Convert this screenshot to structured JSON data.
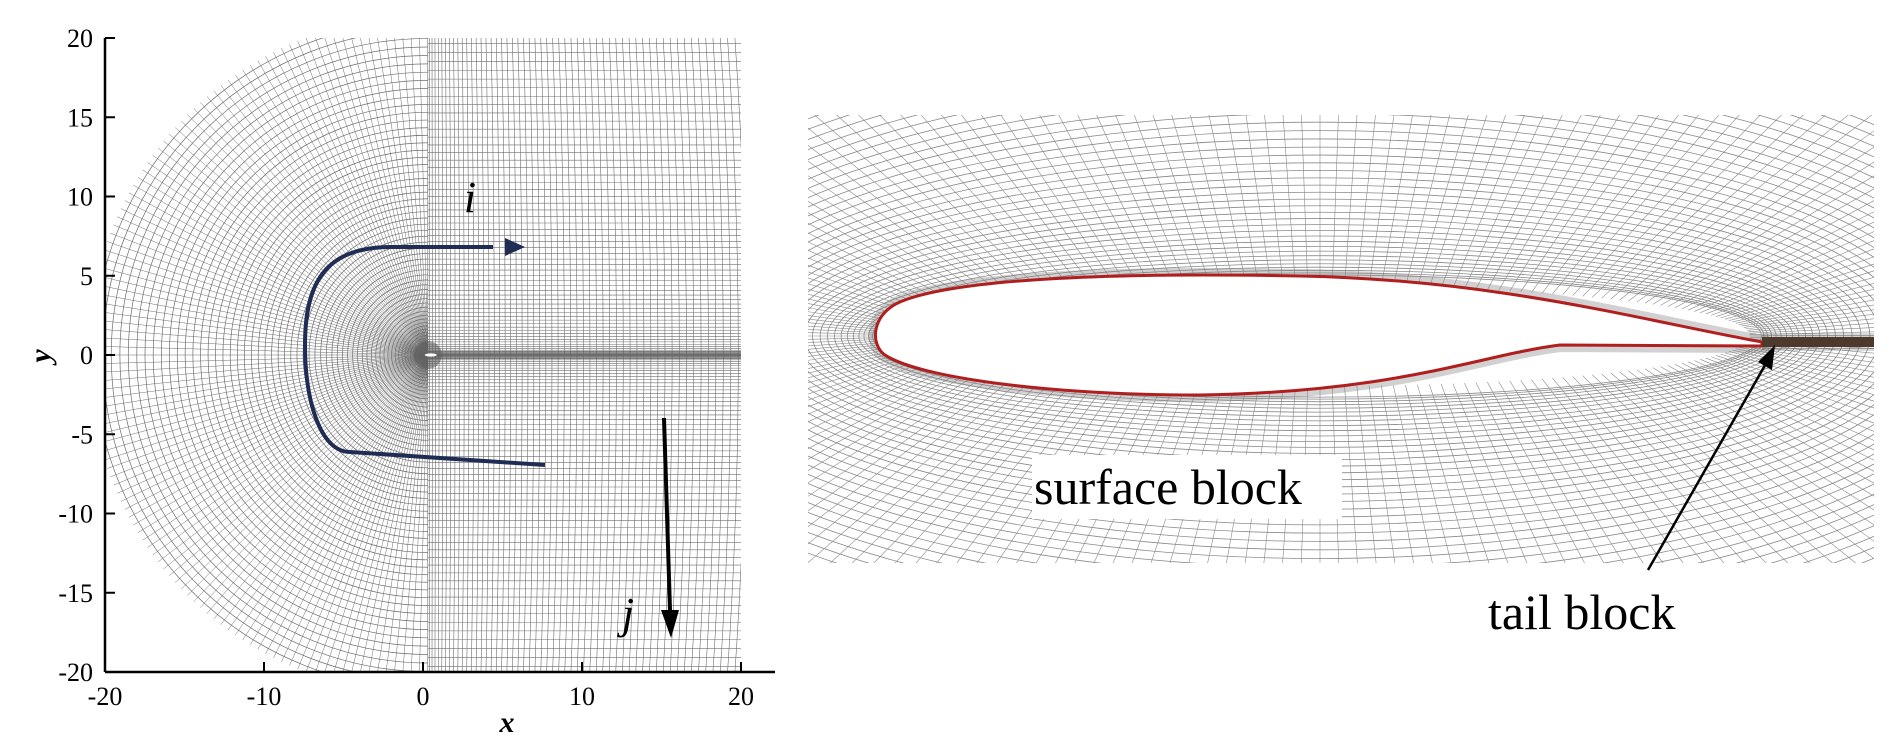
{
  "left_panel": {
    "x_axis_label": "x",
    "y_axis_label": "y",
    "x_ticks": [
      "-20",
      "-10",
      "0",
      "10",
      "20"
    ],
    "y_ticks": [
      "20",
      "15",
      "10",
      "5",
      "0",
      "-5",
      "-10",
      "-15",
      "-20"
    ],
    "i_label": "i",
    "j_label": "j",
    "curve_color": "#1f2d55",
    "grid_color": "#6f6f6f"
  },
  "right_panel": {
    "surface_label": "surface block",
    "tail_label": "tail block",
    "airfoil_outline_color": "#b01e1e",
    "grid_color": "#8a8a8a"
  }
}
